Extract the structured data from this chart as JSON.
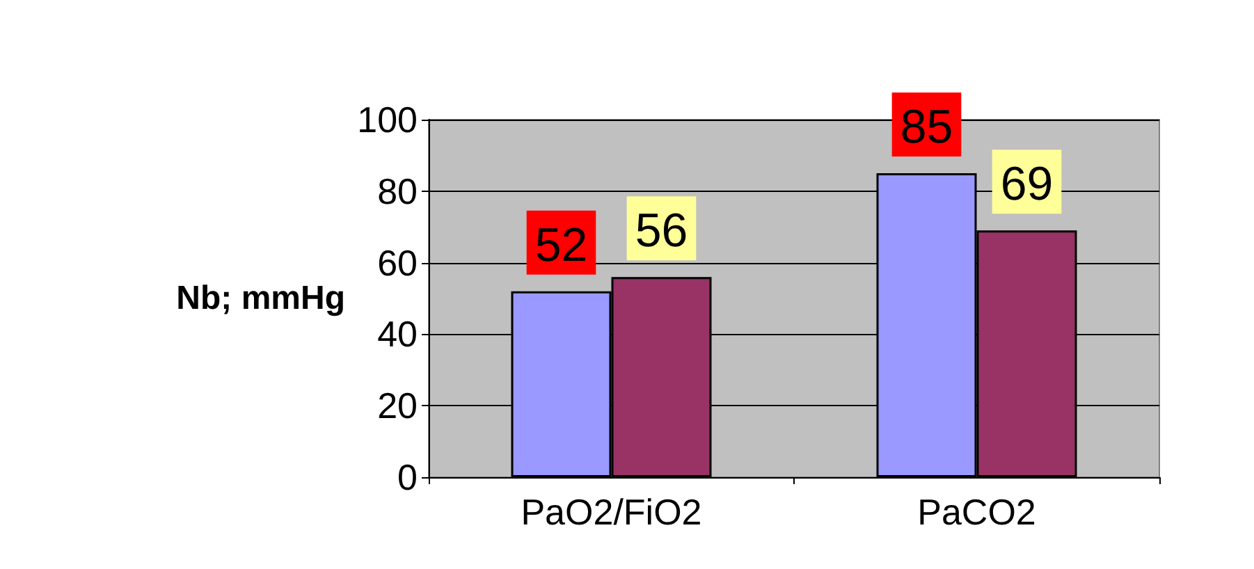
{
  "chart_data": {
    "type": "bar",
    "ylabel": "Nb; mmHg",
    "categories": [
      "PaO2/FiO2",
      "PaCO2"
    ],
    "series": [
      {
        "color": "#9999ff",
        "values": [
          52,
          85
        ]
      },
      {
        "color": "#993366",
        "values": [
          56,
          69
        ]
      }
    ],
    "ylim": [
      0,
      100
    ],
    "yticks": [
      0,
      20,
      40,
      60,
      80,
      100
    ],
    "grid": "y",
    "data_labels": true
  }
}
